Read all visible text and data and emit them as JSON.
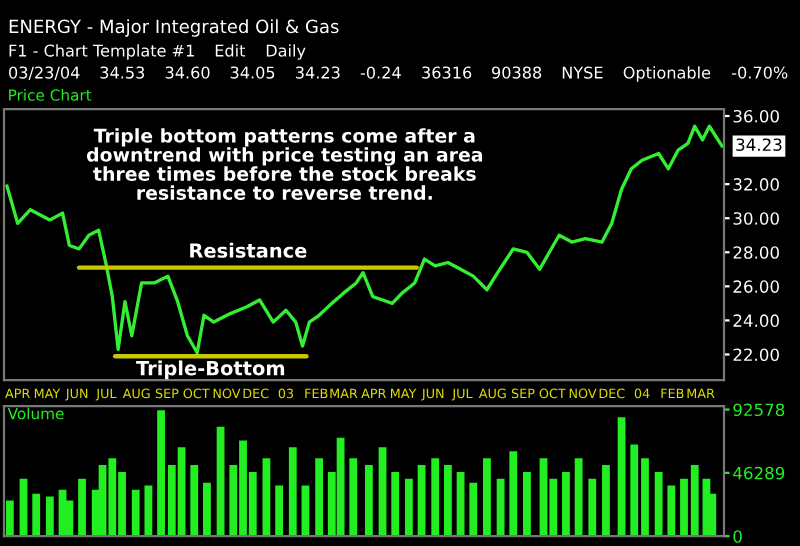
{
  "chart_data": [
    {
      "type": "line",
      "title": "Price Chart",
      "subtitle": "ENERGY - Major Integrated Oil & Gas",
      "annotations": [
        "Triple bottom patterns come after a downtrend with price testing an area three times before the stock breaks resistance to reverse trend.",
        "F1 - Chart Template #1",
        "Edit",
        "Daily",
        "03/23/04",
        "34.53",
        "34.60",
        "34.05",
        "34.23",
        "-0.24",
        "36316",
        "90388",
        "NYSE",
        "Optionable",
        "-0.70%",
        "34.23"
      ],
      "series": [
        {
          "color": "#33ee33",
          "x": [
            "2002-03-21",
            "2002-04-01",
            "2002-04-14",
            "2002-05-04",
            "2002-05-17",
            "2002-05-24",
            "2002-06-03",
            "2002-06-13",
            "2002-06-23",
            "2002-07-01",
            "2002-07-07",
            "2002-07-13",
            "2002-07-20",
            "2002-07-27",
            "2002-08-06",
            "2002-08-19",
            "2002-09-02",
            "2002-09-12",
            "2002-09-22",
            "2002-10-02",
            "2002-10-09",
            "2002-10-19",
            "2002-11-05",
            "2002-11-22",
            "2002-12-05",
            "2002-12-19",
            "2003-01-01",
            "2003-01-11",
            "2003-01-18",
            "2003-01-25",
            "2003-02-04",
            "2003-02-17",
            "2003-03-01",
            "2003-03-14",
            "2003-03-21",
            "2003-03-31",
            "2003-04-10",
            "2003-04-20",
            "2003-04-30",
            "2003-05-13",
            "2003-05-23",
            "2003-06-03",
            "2003-06-16",
            "2003-06-29",
            "2003-07-12",
            "2003-07-26",
            "2003-08-06",
            "2003-08-22",
            "2003-09-05",
            "2003-09-18",
            "2003-09-28",
            "2003-10-08",
            "2003-10-21",
            "2003-11-04",
            "2003-11-21",
            "2003-12-01",
            "2003-12-11",
            "2003-12-21",
            "2004-01-01",
            "2004-01-18",
            "2004-01-28",
            "2004-02-07",
            "2004-02-17",
            "2004-02-24",
            "2004-03-03",
            "2004-03-10",
            "2004-03-23"
          ],
          "values": [
            31.9,
            29.7,
            30.5,
            29.9,
            30.3,
            28.4,
            28.2,
            29.0,
            29.3,
            27.2,
            25.4,
            22.3,
            25.1,
            23.1,
            26.2,
            26.2,
            26.6,
            25.1,
            23.1,
            22.1,
            24.3,
            23.9,
            24.4,
            24.8,
            25.2,
            23.9,
            24.6,
            23.9,
            22.5,
            23.9,
            24.3,
            25.0,
            25.6,
            26.2,
            26.8,
            25.4,
            25.2,
            25.0,
            25.6,
            26.2,
            27.6,
            27.2,
            27.4,
            27.0,
            26.6,
            25.8,
            26.8,
            28.2,
            28.0,
            27.0,
            28.0,
            29.0,
            28.6,
            28.8,
            28.6,
            29.7,
            31.7,
            32.9,
            33.4,
            33.8,
            32.9,
            34.0,
            34.4,
            35.4,
            34.6,
            35.4,
            34.23
          ]
        },
        {
          "name": "Resistance",
          "type": "line",
          "color": "#c8c800",
          "x": [
            "2002-06-03",
            "2003-05-15"
          ],
          "values": [
            27.1,
            27.1
          ]
        },
        {
          "name": "Triple-Bottom",
          "type": "line",
          "color": "#c8c800",
          "x": [
            "2002-07-10",
            "2003-01-22"
          ],
          "values": [
            21.9,
            21.9
          ]
        }
      ],
      "xlim": [
        "2002-03-18",
        "2004-03-25"
      ],
      "ylim": [
        20.5,
        36.4
      ],
      "xticks": [
        {
          "value": "2002-04-01",
          "label": "APR"
        },
        {
          "value": "2002-05-01",
          "label": "MAY"
        },
        {
          "value": "2002-06-01",
          "label": "JUN"
        },
        {
          "value": "2002-07-01",
          "label": "JUL"
        },
        {
          "value": "2002-08-01",
          "label": "AUG"
        },
        {
          "value": "2002-09-01",
          "label": "SEP"
        },
        {
          "value": "2002-10-01",
          "label": "OCT"
        },
        {
          "value": "2002-11-01",
          "label": "NOV"
        },
        {
          "value": "2002-12-01",
          "label": "DEC"
        },
        {
          "value": "2003-01-01",
          "label": "03"
        },
        {
          "value": "2003-02-01",
          "label": "FEB"
        },
        {
          "value": "2003-03-01",
          "label": "MAR"
        },
        {
          "value": "2003-04-01",
          "label": "APR"
        },
        {
          "value": "2003-05-01",
          "label": "MAY"
        },
        {
          "value": "2003-06-01",
          "label": "JUN"
        },
        {
          "value": "2003-07-01",
          "label": "JUL"
        },
        {
          "value": "2003-08-01",
          "label": "AUG"
        },
        {
          "value": "2003-09-01",
          "label": "SEP"
        },
        {
          "value": "2003-10-01",
          "label": "OCT"
        },
        {
          "value": "2003-11-01",
          "label": "NOV"
        },
        {
          "value": "2003-12-01",
          "label": "DEC"
        },
        {
          "value": "2004-01-01",
          "label": "04"
        },
        {
          "value": "2004-02-01",
          "label": "FEB"
        },
        {
          "value": "2004-03-01",
          "label": "MAR"
        }
      ],
      "yticks": [
        {
          "value": 22,
          "label": "22.00"
        },
        {
          "value": 24,
          "label": "24.00"
        },
        {
          "value": 26,
          "label": "26.00"
        },
        {
          "value": 28,
          "label": "28.00"
        },
        {
          "value": 30,
          "label": "30.00"
        },
        {
          "value": 32,
          "label": "32.00"
        },
        {
          "value": 36,
          "label": "36.00"
        }
      ],
      "grid": false,
      "legend": false
    },
    {
      "type": "bar",
      "title": "Volume",
      "tick_labels": "y",
      "grid": false,
      "legend": false,
      "series": [
        {
          "color": "#22ee22",
          "x": [
            "2002-03-24",
            "2002-04-07",
            "2002-04-20",
            "2002-05-04",
            "2002-05-17",
            "2002-05-24",
            "2002-06-06",
            "2002-06-20",
            "2002-06-27",
            "2002-07-07",
            "2002-07-17",
            "2002-07-31",
            "2002-08-13",
            "2002-08-26",
            "2002-09-06",
            "2002-09-16",
            "2002-09-29",
            "2002-10-12",
            "2002-10-26",
            "2002-11-08",
            "2002-11-18",
            "2002-11-28",
            "2002-12-12",
            "2002-12-25",
            "2003-01-08",
            "2003-01-21",
            "2003-02-04",
            "2003-02-17",
            "2003-02-26",
            "2003-03-11",
            "2003-03-27",
            "2003-04-10",
            "2003-04-23",
            "2003-05-07",
            "2003-05-20",
            "2003-06-03",
            "2003-06-16",
            "2003-06-29",
            "2003-07-12",
            "2003-07-26",
            "2003-08-09",
            "2003-08-22",
            "2003-09-05",
            "2003-09-22",
            "2003-10-02",
            "2003-10-15",
            "2003-10-28",
            "2003-11-11",
            "2003-11-25",
            "2003-12-11",
            "2003-12-24",
            "2004-01-04",
            "2004-01-18",
            "2004-01-31",
            "2004-02-13",
            "2004-02-24",
            "2004-03-07",
            "2004-03-13"
          ],
          "values": [
            26000,
            42000,
            31000,
            29000,
            34000,
            26000,
            42000,
            34000,
            52000,
            57000,
            47000,
            34000,
            37000,
            92000,
            52000,
            65000,
            52000,
            39000,
            80000,
            52000,
            70000,
            47000,
            57000,
            37000,
            65000,
            37000,
            57000,
            47000,
            72000,
            57000,
            52000,
            65000,
            47000,
            42000,
            52000,
            57000,
            52000,
            47000,
            39000,
            57000,
            42000,
            62000,
            47000,
            57000,
            42000,
            47000,
            57000,
            42000,
            52000,
            87000,
            67000,
            57000,
            47000,
            37000,
            42000,
            52000,
            42000,
            31000
          ]
        }
      ],
      "xlim": [
        "2002-03-18",
        "2004-03-25"
      ],
      "ylim": [
        0,
        95000
      ],
      "yticks": [
        0,
        46289,
        92578
      ]
    }
  ]
}
